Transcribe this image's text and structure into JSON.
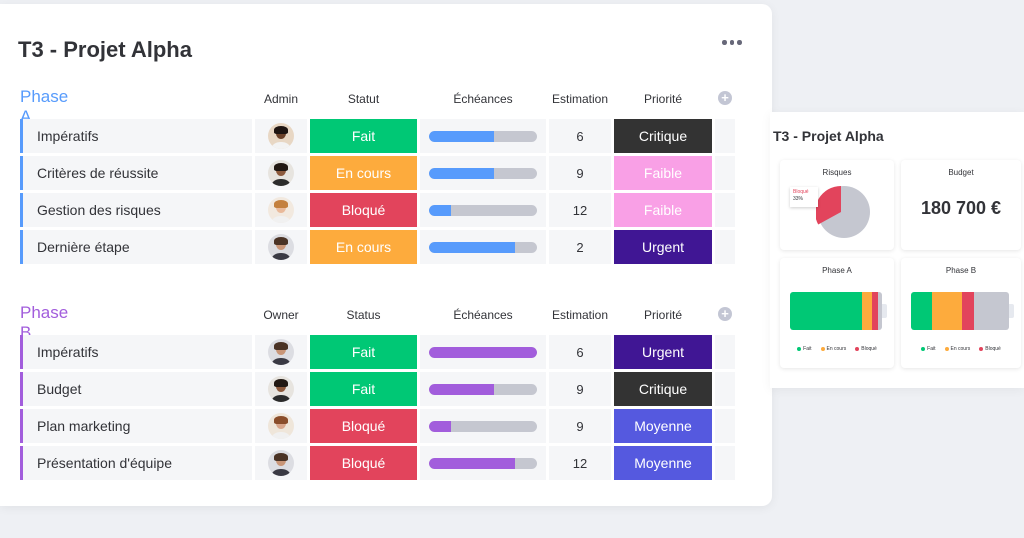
{
  "board": {
    "title": "T3 - Projet Alpha"
  },
  "groups": [
    {
      "name": "Phase A",
      "color": "#579bfc",
      "headers": {
        "person": "Admin",
        "status": "Statut",
        "timeline": "Échéances",
        "estimate": "Estimation",
        "priority": "Priorité"
      },
      "rows": [
        {
          "name": "Impératifs",
          "status": "Fait",
          "status_color": "#00c875",
          "timeline_progress": 0.6,
          "estimate": "6",
          "priority": "Critique",
          "priority_color": "#333333",
          "avatar": "person-1"
        },
        {
          "name": "Critères de réussite",
          "status": "En cours",
          "status_color": "#fdab3d",
          "timeline_progress": 0.6,
          "estimate": "9",
          "priority": "Faible",
          "priority_color": "#f9a0e6",
          "avatar": "person-2"
        },
        {
          "name": "Gestion des risques",
          "status": "Bloqué",
          "status_color": "#e2445c",
          "timeline_progress": 0.2,
          "estimate": "12",
          "priority": "Faible",
          "priority_color": "#f9a0e6",
          "avatar": "person-3"
        },
        {
          "name": "Dernière étape",
          "status": "En cours",
          "status_color": "#fdab3d",
          "timeline_progress": 0.8,
          "estimate": "2",
          "priority": "Urgent",
          "priority_color": "#401694",
          "avatar": "person-4"
        }
      ]
    },
    {
      "name": "Phase B",
      "color": "#a25ddc",
      "headers": {
        "person": "Owner",
        "status": "Status",
        "timeline": "Échéances",
        "estimate": "Estimation",
        "priority": "Priorité"
      },
      "rows": [
        {
          "name": "Impératifs",
          "status": "Fait",
          "status_color": "#00c875",
          "timeline_progress": 1.0,
          "estimate": "6",
          "priority": "Urgent",
          "priority_color": "#401694",
          "avatar": "person-4"
        },
        {
          "name": "Budget",
          "status": "Fait",
          "status_color": "#00c875",
          "timeline_progress": 0.6,
          "estimate": "9",
          "priority": "Critique",
          "priority_color": "#333333",
          "avatar": "person-2"
        },
        {
          "name": "Plan marketing",
          "status": "Bloqué",
          "status_color": "#e2445c",
          "timeline_progress": 0.2,
          "estimate": "9",
          "priority": "Moyenne",
          "priority_color": "#5559df",
          "avatar": "person-5"
        },
        {
          "name": "Présentation d'équipe",
          "status": "Bloqué",
          "status_color": "#e2445c",
          "timeline_progress": 0.8,
          "estimate": "12",
          "priority": "Moyenne",
          "priority_color": "#5559df",
          "avatar": "person-4"
        }
      ]
    }
  ],
  "dashboard": {
    "title": "T3 - Projet Alpha",
    "risks": {
      "title": "Risques",
      "tag_label": "Bloqué",
      "tag_value": "33%",
      "blocked_fraction": 0.33,
      "colors": {
        "blocked": "#e2445c",
        "rest": "#c5c7d0"
      }
    },
    "budget": {
      "title": "Budget",
      "value": "180 700 €"
    },
    "phase_a": {
      "title": "Phase A",
      "segments": [
        {
          "label": "Fait",
          "fraction": 0.7,
          "color": "#00c875"
        },
        {
          "label": "En cours",
          "fraction": 0.1,
          "color": "#fdab3d"
        },
        {
          "label": "Bloqué",
          "fraction": 0.06,
          "color": "#e2445c"
        },
        {
          "label": "",
          "fraction": 0.04,
          "color": "#c5c7d0"
        }
      ],
      "legend": [
        "Fait",
        "En cours",
        "Bloqué"
      ]
    },
    "phase_b": {
      "title": "Phase B",
      "segments": [
        {
          "label": "Fait",
          "fraction": 0.18,
          "color": "#00c875"
        },
        {
          "label": "En cours",
          "fraction": 0.25,
          "color": "#fdab3d"
        },
        {
          "label": "Bloqué",
          "fraction": 0.1,
          "color": "#e2445c"
        },
        {
          "label": "",
          "fraction": 0.3,
          "color": "#c5c7d0"
        }
      ],
      "legend": [
        "Fait",
        "En cours",
        "Bloqué"
      ]
    }
  }
}
